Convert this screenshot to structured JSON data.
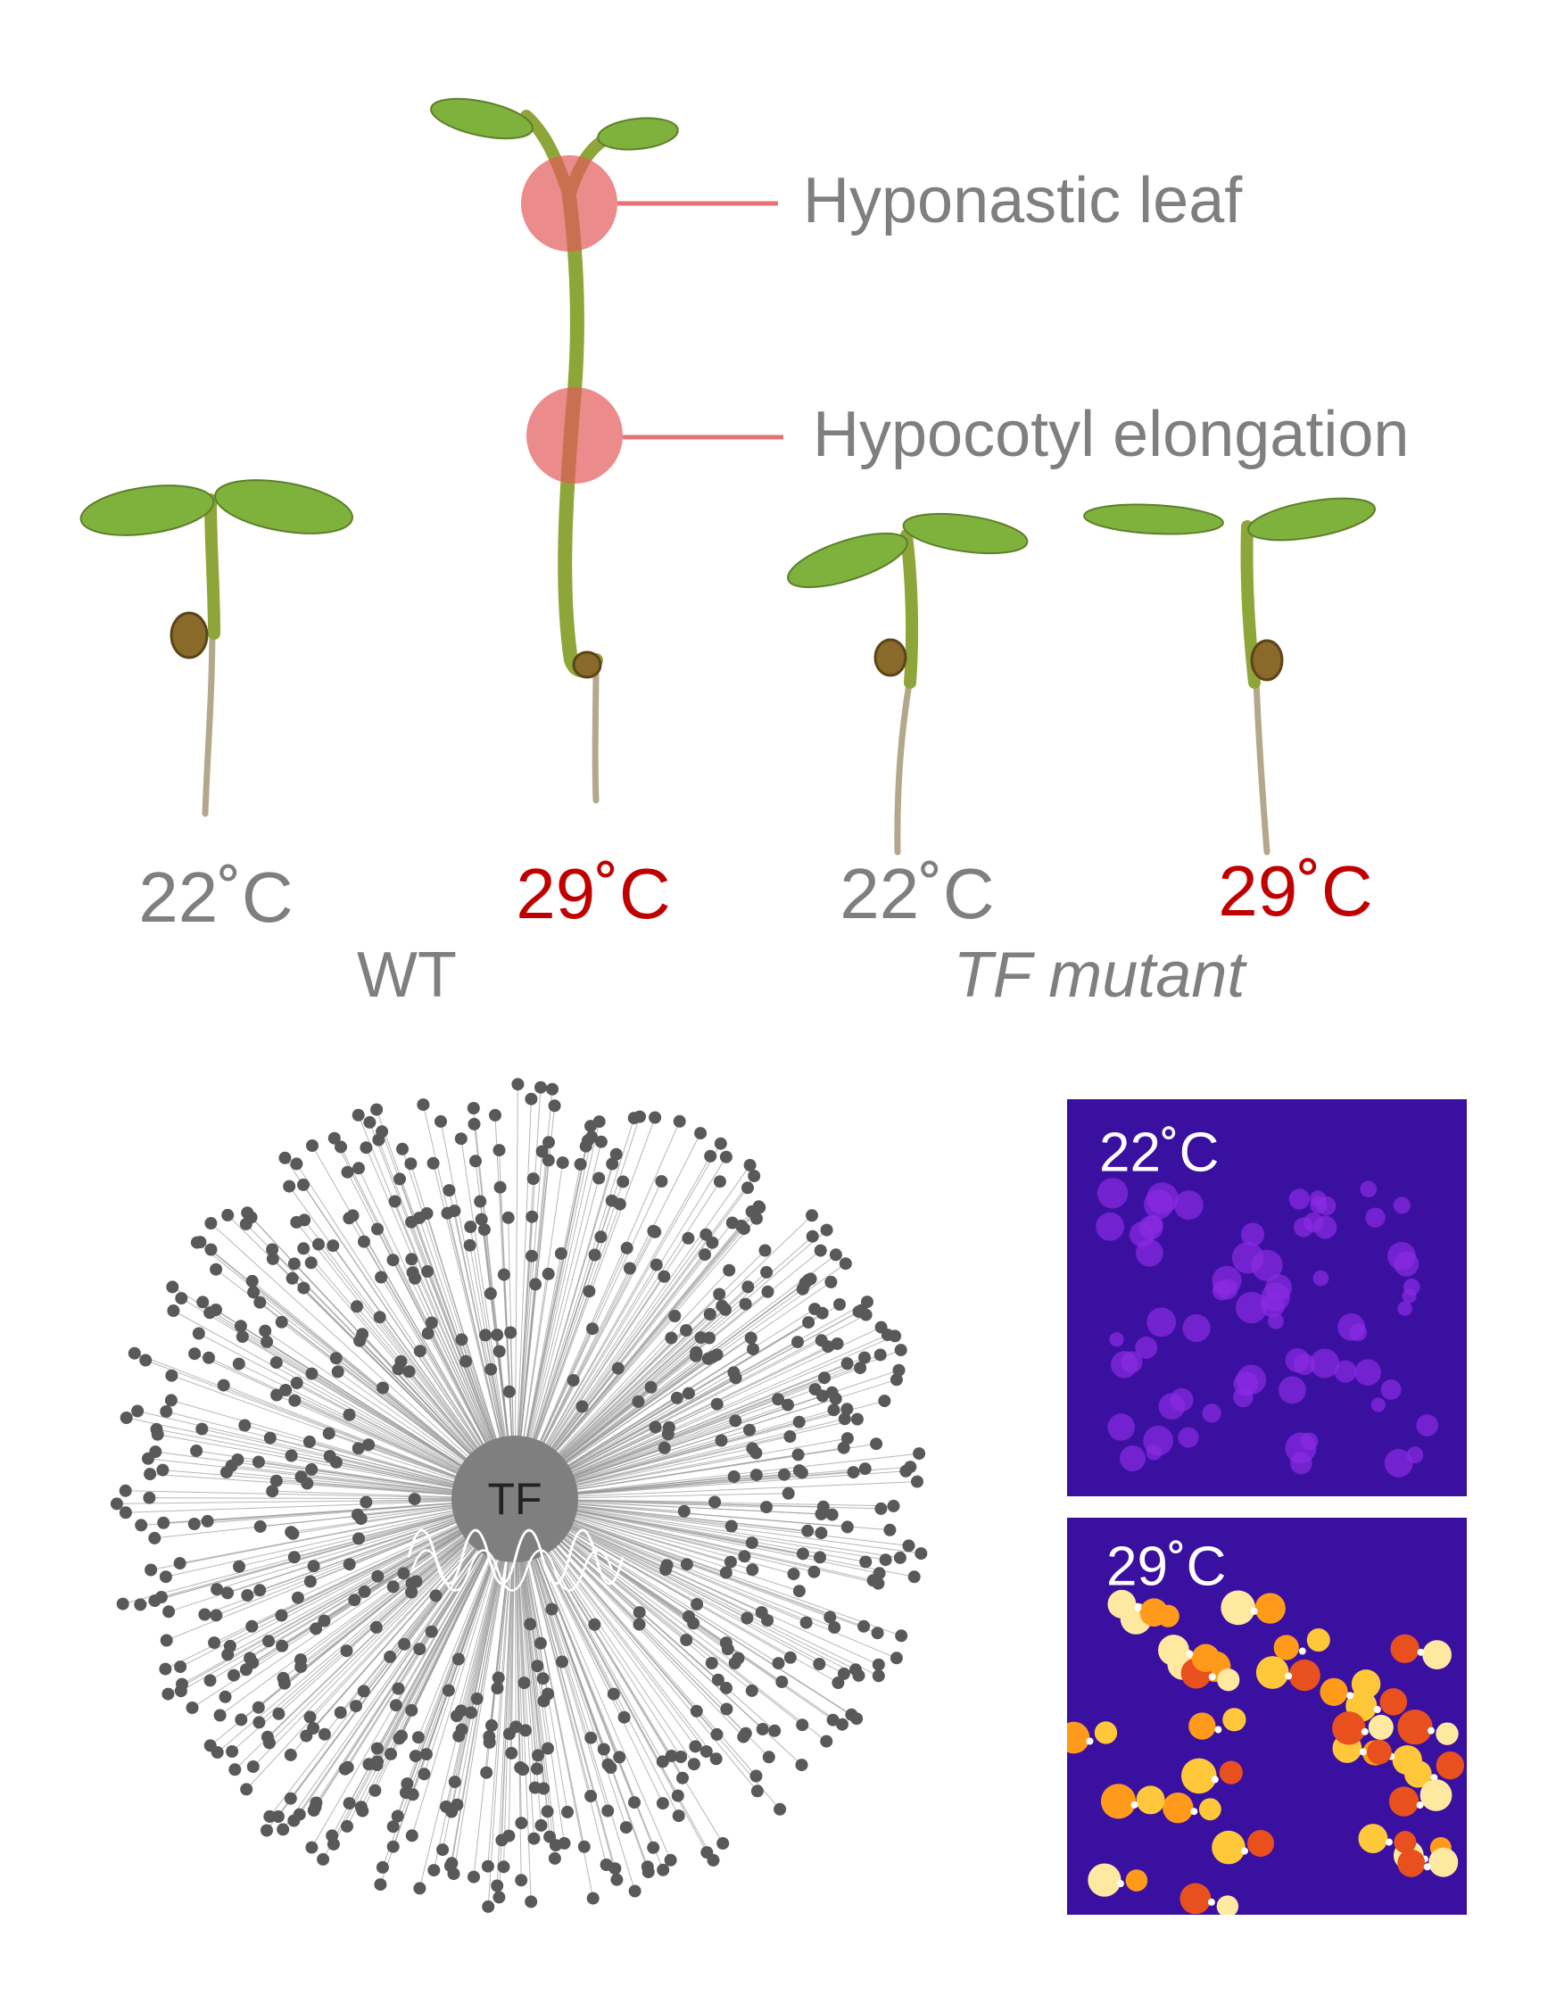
{
  "annotations": [
    {
      "label": "Hyponastic leaf"
    },
    {
      "label": "Hypocotyl elongation"
    }
  ],
  "seedlings": [
    {
      "label": "22˚C"
    },
    {
      "label": "29˚C"
    },
    {
      "label": "22˚C"
    },
    {
      "label": "29˚C"
    }
  ],
  "groups": [
    {
      "label": "WT"
    },
    {
      "label": "TF mutant"
    }
  ],
  "network": {
    "hub": "TF"
  },
  "thermal_images": [
    {
      "label": "22˚C"
    },
    {
      "label": "29˚C"
    }
  ]
}
